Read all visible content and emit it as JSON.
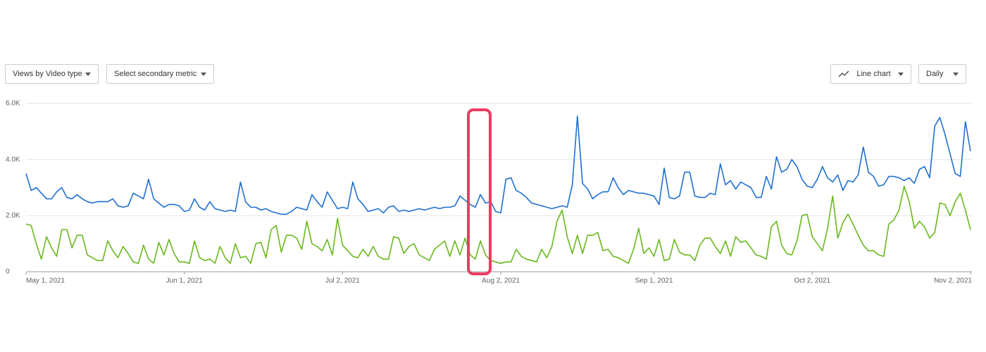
{
  "controls": {
    "primary_metric": "Views by Video type",
    "secondary_metric": "Select secondary metric",
    "chart_style": "Line chart",
    "interval": "Daily"
  },
  "chart_data": {
    "type": "line",
    "x": [
      "2021-05-01",
      "2021-05-02",
      "2021-05-03",
      "2021-05-04",
      "2021-05-05",
      "2021-05-06",
      "2021-05-07",
      "2021-05-08",
      "2021-05-09",
      "2021-05-10",
      "2021-05-11",
      "2021-05-12",
      "2021-05-13",
      "2021-05-14",
      "2021-05-15",
      "2021-05-16",
      "2021-05-17",
      "2021-05-18",
      "2021-05-19",
      "2021-05-20",
      "2021-05-21",
      "2021-05-22",
      "2021-05-23",
      "2021-05-24",
      "2021-05-25",
      "2021-05-26",
      "2021-05-27",
      "2021-05-28",
      "2021-05-29",
      "2021-05-30",
      "2021-05-31",
      "2021-06-01",
      "2021-06-02",
      "2021-06-03",
      "2021-06-04",
      "2021-06-05",
      "2021-06-06",
      "2021-06-07",
      "2021-06-08",
      "2021-06-09",
      "2021-06-10",
      "2021-06-11",
      "2021-06-12",
      "2021-06-13",
      "2021-06-14",
      "2021-06-15",
      "2021-06-16",
      "2021-06-17",
      "2021-06-18",
      "2021-06-19",
      "2021-06-20",
      "2021-06-21",
      "2021-06-22",
      "2021-06-23",
      "2021-06-24",
      "2021-06-25",
      "2021-06-26",
      "2021-06-27",
      "2021-06-28",
      "2021-06-29",
      "2021-06-30",
      "2021-07-01",
      "2021-07-02",
      "2021-07-03",
      "2021-07-04",
      "2021-07-05",
      "2021-07-06",
      "2021-07-07",
      "2021-07-08",
      "2021-07-09",
      "2021-07-10",
      "2021-07-11",
      "2021-07-12",
      "2021-07-13",
      "2021-07-14",
      "2021-07-15",
      "2021-07-16",
      "2021-07-17",
      "2021-07-18",
      "2021-07-19",
      "2021-07-20",
      "2021-07-21",
      "2021-07-22",
      "2021-07-23",
      "2021-07-24",
      "2021-07-25",
      "2021-07-26",
      "2021-07-27",
      "2021-07-28",
      "2021-07-29",
      "2021-07-30",
      "2021-07-31",
      "2021-08-01",
      "2021-08-02",
      "2021-08-03",
      "2021-08-04",
      "2021-08-05",
      "2021-08-06",
      "2021-08-07",
      "2021-08-08",
      "2021-08-09",
      "2021-08-10",
      "2021-08-11",
      "2021-08-12",
      "2021-08-13",
      "2021-08-14",
      "2021-08-15",
      "2021-08-16",
      "2021-08-17",
      "2021-08-18",
      "2021-08-19",
      "2021-08-20",
      "2021-08-21",
      "2021-08-22",
      "2021-08-23",
      "2021-08-24",
      "2021-08-25",
      "2021-08-26",
      "2021-08-27",
      "2021-08-28",
      "2021-08-29",
      "2021-08-30",
      "2021-08-31",
      "2021-09-01",
      "2021-09-02",
      "2021-09-03",
      "2021-09-04",
      "2021-09-05",
      "2021-09-06",
      "2021-09-07",
      "2021-09-08",
      "2021-09-09",
      "2021-09-10",
      "2021-09-11",
      "2021-09-12",
      "2021-09-13",
      "2021-09-14",
      "2021-09-15",
      "2021-09-16",
      "2021-09-17",
      "2021-09-18",
      "2021-09-19",
      "2021-09-20",
      "2021-09-21",
      "2021-09-22",
      "2021-09-23",
      "2021-09-24",
      "2021-09-25",
      "2021-09-26",
      "2021-09-27",
      "2021-09-28",
      "2021-09-29",
      "2021-09-30",
      "2021-10-01",
      "2021-10-02",
      "2021-10-03",
      "2021-10-04",
      "2021-10-05",
      "2021-10-06",
      "2021-10-07",
      "2021-10-08",
      "2021-10-09",
      "2021-10-10",
      "2021-10-11",
      "2021-10-12",
      "2021-10-13",
      "2021-10-14",
      "2021-10-15",
      "2021-10-16",
      "2021-10-17",
      "2021-10-18",
      "2021-10-19",
      "2021-10-20",
      "2021-10-21",
      "2021-10-22",
      "2021-10-23",
      "2021-10-24",
      "2021-10-25",
      "2021-10-26",
      "2021-10-27",
      "2021-10-28",
      "2021-10-29",
      "2021-10-30",
      "2021-10-31",
      "2021-11-01",
      "2021-11-02"
    ],
    "series": [
      {
        "color": "#1f6fd1",
        "values": [
          3500,
          2900,
          3000,
          2800,
          2600,
          2600,
          2850,
          3000,
          2650,
          2600,
          2750,
          2600,
          2500,
          2450,
          2500,
          2500,
          2500,
          2600,
          2350,
          2300,
          2350,
          2800,
          2700,
          2600,
          3300,
          2600,
          2450,
          2300,
          2400,
          2400,
          2350,
          2150,
          2200,
          2600,
          2300,
          2200,
          2500,
          2250,
          2200,
          2150,
          2200,
          2150,
          3200,
          2500,
          2300,
          2300,
          2200,
          2250,
          2150,
          2100,
          2050,
          2050,
          2150,
          2300,
          2250,
          2200,
          2750,
          2500,
          2300,
          2850,
          2550,
          2250,
          2300,
          2250,
          3200,
          2600,
          2400,
          2150,
          2200,
          2250,
          2100,
          2300,
          2350,
          2150,
          2200,
          2150,
          2200,
          2250,
          2200,
          2250,
          2300,
          2250,
          2300,
          2300,
          2350,
          2700,
          2550,
          2400,
          2300,
          2750,
          2450,
          2500,
          2150,
          2100,
          3300,
          3350,
          2900,
          2800,
          2650,
          2450,
          2400,
          2350,
          2300,
          2250,
          2300,
          2350,
          2300,
          3100,
          5550,
          3150,
          2950,
          2600,
          2750,
          2850,
          2850,
          3350,
          3000,
          2750,
          2900,
          2850,
          2800,
          2800,
          2750,
          2700,
          2400,
          3700,
          2650,
          2600,
          2700,
          3550,
          3550,
          2700,
          2650,
          2650,
          2800,
          2750,
          3850,
          3100,
          3250,
          2950,
          3200,
          3100,
          3000,
          2650,
          2650,
          3400,
          2950,
          4100,
          3550,
          3650,
          4000,
          3750,
          3300,
          3050,
          3000,
          3300,
          3750,
          3350,
          3200,
          3450,
          2900,
          3250,
          3200,
          3450,
          4450,
          3550,
          3400,
          3050,
          3100,
          3400,
          3400,
          3350,
          3250,
          3350,
          3150,
          3650,
          3750,
          3350,
          5200,
          5500,
          4900,
          4200,
          3500,
          3400,
          5350,
          4300
        ]
      },
      {
        "color": "#68b81c",
        "values": [
          1700,
          1650,
          1000,
          450,
          1250,
          850,
          550,
          1500,
          1500,
          850,
          1300,
          1300,
          600,
          500,
          400,
          400,
          1100,
          750,
          500,
          900,
          650,
          350,
          300,
          950,
          450,
          300,
          1050,
          600,
          1150,
          650,
          350,
          350,
          300,
          1100,
          500,
          400,
          450,
          300,
          900,
          500,
          300,
          1000,
          500,
          550,
          300,
          1000,
          1050,
          500,
          1500,
          1650,
          700,
          1300,
          1300,
          1200,
          800,
          1800,
          1000,
          900,
          750,
          1150,
          600,
          1900,
          950,
          750,
          550,
          500,
          800,
          550,
          900,
          550,
          450,
          450,
          1250,
          1200,
          650,
          900,
          1000,
          600,
          500,
          400,
          800,
          950,
          1100,
          550,
          1100,
          600,
          1200,
          600,
          450,
          1100,
          600,
          400,
          350,
          300,
          350,
          350,
          800,
          550,
          450,
          400,
          350,
          800,
          500,
          900,
          1800,
          2200,
          1250,
          650,
          1300,
          650,
          1300,
          1300,
          1400,
          750,
          800,
          550,
          500,
          400,
          300,
          800,
          1550,
          650,
          850,
          550,
          1150,
          400,
          450,
          1150,
          700,
          600,
          600,
          400,
          950,
          1200,
          1200,
          900,
          650,
          1100,
          550,
          1250,
          1050,
          1100,
          850,
          600,
          550,
          450,
          1600,
          1800,
          950,
          650,
          600,
          1100,
          2000,
          2050,
          1250,
          1000,
          750,
          1550,
          2700,
          1200,
          1750,
          2050,
          1700,
          1300,
          950,
          750,
          750,
          600,
          550,
          1700,
          1850,
          2200,
          3050,
          2500,
          1550,
          1800,
          1600,
          1200,
          1400,
          2450,
          2400,
          2000,
          2500,
          2800,
          2200,
          1500
        ]
      }
    ],
    "xlim": [
      "2021-05-01",
      "2021-11-02"
    ],
    "xticks": [
      {
        "value": "2021-05-01",
        "label": "May 1, 2021"
      },
      {
        "value": "2021-06-01",
        "label": "Jun 1, 2021"
      },
      {
        "value": "2021-07-02",
        "label": "Jul 2, 2021"
      },
      {
        "value": "2021-08-02",
        "label": "Aug 2, 2021"
      },
      {
        "value": "2021-09-01",
        "label": "Sep 1, 2021"
      },
      {
        "value": "2021-10-02",
        "label": "Oct 2, 2021"
      },
      {
        "value": "2021-11-02",
        "label": "Nov 2, 2021"
      }
    ],
    "ylim": [
      0,
      6000
    ],
    "yticks": [
      0,
      {
        "value": 2000,
        "label": "2.0K"
      },
      {
        "value": 4000,
        "label": "4.0K"
      },
      {
        "value": 6000,
        "label": "6.0K"
      }
    ],
    "grid": true
  }
}
